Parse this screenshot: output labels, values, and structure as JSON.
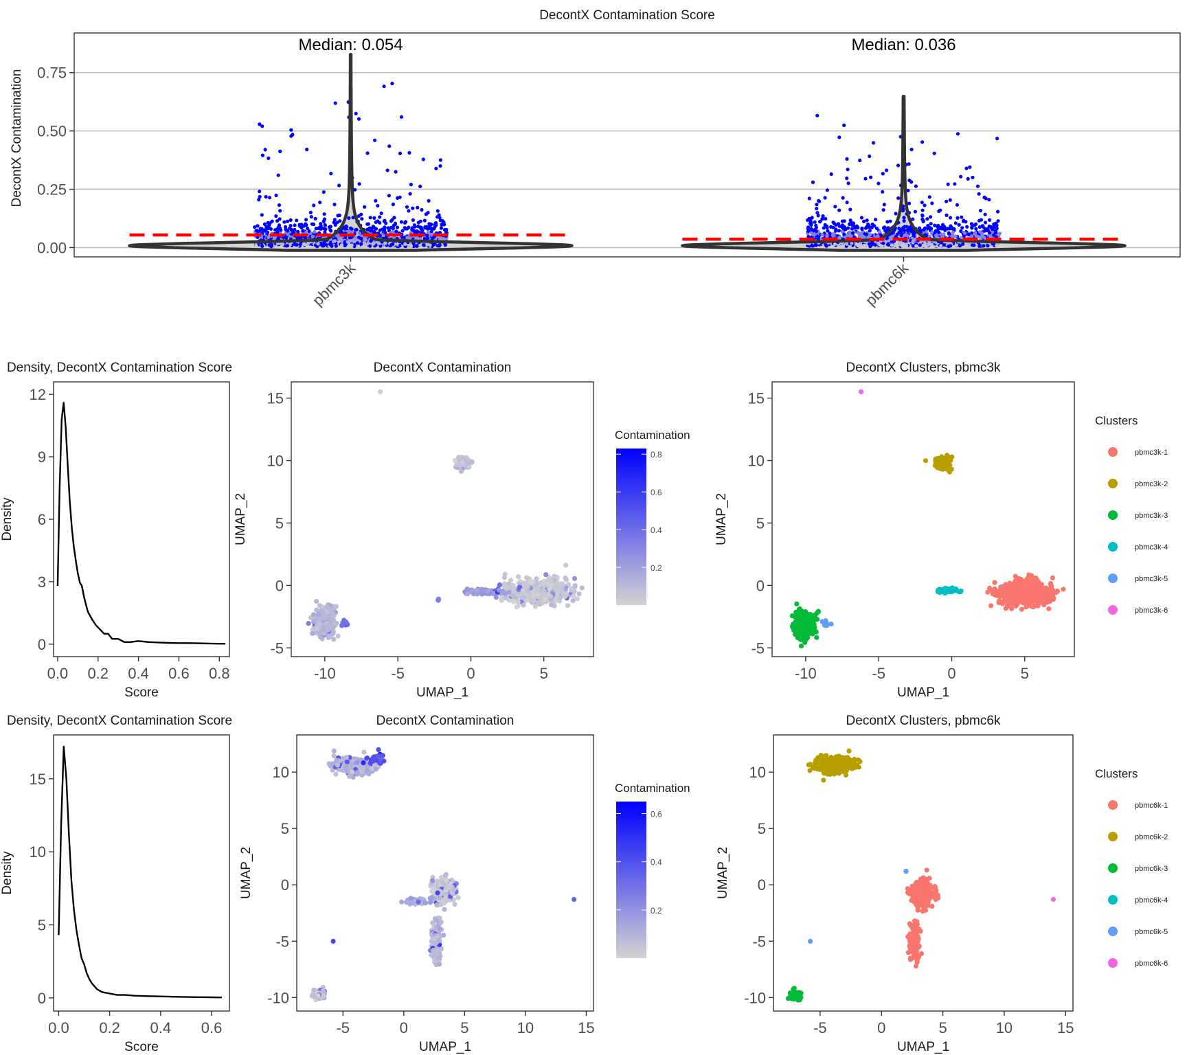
{
  "chart_data": [
    {
      "id": "violin",
      "type": "violin",
      "title": "DecontX Contamination Score",
      "ylabel": "DecontX Contamination",
      "xlabel": "",
      "categories": [
        "pbmc3k",
        "pbmc6k"
      ],
      "ylim": [
        -0.04,
        0.92
      ],
      "yticks": [
        0.0,
        0.25,
        0.5,
        0.75
      ],
      "ytick_labels": [
        "0.00",
        "0.25",
        "0.50",
        "0.75"
      ],
      "medians": [
        0.054,
        0.036
      ],
      "annotations": [
        "Median: 0.054",
        "Median: 0.036"
      ],
      "max_values": [
        0.83,
        0.65
      ],
      "point_color": "#0000ff",
      "fill_color": "#d3d3d3",
      "median_line_color": "#ff0000",
      "grid": true
    },
    {
      "id": "density_3k",
      "type": "line",
      "title": "Density, DecontX Contamination Score",
      "xlabel": "Score",
      "ylabel": "Density",
      "xlim": [
        -0.02,
        0.85
      ],
      "ylim": [
        -0.6,
        12.6
      ],
      "xticks": [
        0.0,
        0.2,
        0.4,
        0.6,
        0.8
      ],
      "xtick_labels": [
        "0.0",
        "0.2",
        "0.4",
        "0.6",
        "0.8"
      ],
      "yticks": [
        0,
        3,
        6,
        9,
        12
      ],
      "ytick_labels": [
        "0",
        "3",
        "6",
        "9",
        "12"
      ],
      "x": [
        0.0,
        0.01,
        0.02,
        0.03,
        0.04,
        0.05,
        0.06,
        0.07,
        0.08,
        0.09,
        0.1,
        0.11,
        0.12,
        0.13,
        0.14,
        0.15,
        0.17,
        0.19,
        0.21,
        0.23,
        0.25,
        0.27,
        0.3,
        0.33,
        0.36,
        0.4,
        0.45,
        0.5,
        0.55,
        0.6,
        0.65,
        0.7,
        0.75,
        0.8,
        0.83
      ],
      "y": [
        2.8,
        7.5,
        10.8,
        11.6,
        10.4,
        8.6,
        6.9,
        5.6,
        4.7,
        4.0,
        3.4,
        2.95,
        2.8,
        2.3,
        1.9,
        1.55,
        1.2,
        0.9,
        0.7,
        0.5,
        0.5,
        0.25,
        0.25,
        0.1,
        0.1,
        0.15,
        0.1,
        0.08,
        0.06,
        0.05,
        0.05,
        0.04,
        0.03,
        0.02,
        0.02
      ],
      "grid": false
    },
    {
      "id": "umap_contam_3k",
      "type": "scatter",
      "title": "DecontX Contamination",
      "xlabel": "UMAP_1",
      "ylabel": "UMAP_2",
      "xlim": [
        -12.3,
        8.4
      ],
      "ylim": [
        -5.7,
        16.3
      ],
      "xticks": [
        -10,
        -5,
        0,
        5
      ],
      "xtick_labels": [
        "-10",
        "-5",
        "0",
        "5"
      ],
      "yticks": [
        -5,
        0,
        5,
        10,
        15
      ],
      "ytick_labels": [
        "-5",
        "0",
        "5",
        "10",
        "15"
      ],
      "color_scale": {
        "title": "Contamination",
        "min": 0.0,
        "max": 0.83,
        "low": "#d3d3d3",
        "high": "#0000ff",
        "ticks": [
          0.2,
          0.4,
          0.6,
          0.8
        ],
        "tick_labels": [
          "0.2",
          "0.4",
          "0.6",
          "0.8"
        ]
      },
      "clusters": [
        {
          "center": [
            4.5,
            -0.5
          ],
          "spread": [
            1.9,
            0.9
          ],
          "n": 520,
          "level": 0.04
        },
        {
          "center": [
            -0.5,
            9.8
          ],
          "spread": [
            0.45,
            0.45
          ],
          "n": 90,
          "level": 0.08
        },
        {
          "center": [
            -10.0,
            -3.0
          ],
          "spread": [
            0.7,
            1.1
          ],
          "n": 260,
          "level": 0.1
        },
        {
          "center": [
            0.9,
            -0.5
          ],
          "spread": [
            1.1,
            0.2
          ],
          "n": 110,
          "level": 0.22
        },
        {
          "center": [
            -8.6,
            -3.0
          ],
          "spread": [
            0.25,
            0.25
          ],
          "n": 14,
          "level": 0.4
        },
        {
          "center": [
            -2.2,
            -1.1
          ],
          "spread": [
            0.1,
            0.1
          ],
          "n": 4,
          "level": 0.35
        },
        {
          "center": [
            -6.2,
            15.5
          ],
          "spread": [
            0.01,
            0.01
          ],
          "n": 1,
          "level": 0.05
        }
      ]
    },
    {
      "id": "umap_clusters_3k",
      "type": "scatter",
      "title": "DecontX Clusters, pbmc3k",
      "xlabel": "UMAP_1",
      "ylabel": "UMAP_2",
      "xlim": [
        -12.3,
        8.4
      ],
      "ylim": [
        -5.7,
        16.3
      ],
      "xticks": [
        -10,
        -5,
        0,
        5
      ],
      "xtick_labels": [
        "-10",
        "-5",
        "0",
        "5"
      ],
      "yticks": [
        -5,
        0,
        5,
        10,
        15
      ],
      "ytick_labels": [
        "-5",
        "0",
        "5",
        "10",
        "15"
      ],
      "legend": {
        "title": "Clusters",
        "position": "right",
        "entries": [
          "pbmc3k-1",
          "pbmc3k-2",
          "pbmc3k-3",
          "pbmc3k-4",
          "pbmc3k-5",
          "pbmc3k-6"
        ],
        "colors": [
          "#f8766d",
          "#b79f00",
          "#00ba38",
          "#00bfc4",
          "#619cff",
          "#f564e3"
        ]
      },
      "clusters": [
        {
          "label": "pbmc3k-1",
          "center": [
            5.0,
            -0.6
          ],
          "spread": [
            1.8,
            0.9
          ],
          "n": 520
        },
        {
          "label": "pbmc3k-2",
          "center": [
            -0.6,
            9.8
          ],
          "spread": [
            0.45,
            0.45
          ],
          "n": 90
        },
        {
          "label": "pbmc3k-3",
          "center": [
            -10.1,
            -3.2
          ],
          "spread": [
            0.7,
            1.0
          ],
          "n": 260
        },
        {
          "label": "pbmc3k-4",
          "center": [
            -0.3,
            -0.4
          ],
          "spread": [
            0.6,
            0.15
          ],
          "n": 70
        },
        {
          "label": "pbmc3k-5",
          "center": [
            -8.6,
            -3.0
          ],
          "spread": [
            0.25,
            0.25
          ],
          "n": 14
        },
        {
          "label": "pbmc3k-6",
          "center": [
            -6.2,
            15.5
          ],
          "spread": [
            0.01,
            0.01
          ],
          "n": 1
        }
      ]
    },
    {
      "id": "density_6k",
      "type": "line",
      "title": "Density, DecontX Contamination Score",
      "xlabel": "Score",
      "ylabel": "Density",
      "xlim": [
        -0.02,
        0.67
      ],
      "ylim": [
        -0.9,
        18.0
      ],
      "xticks": [
        0.0,
        0.2,
        0.4,
        0.6
      ],
      "xtick_labels": [
        "0.0",
        "0.2",
        "0.4",
        "0.6"
      ],
      "yticks": [
        0,
        5,
        10,
        15
      ],
      "ytick_labels": [
        "0",
        "5",
        "10",
        "15"
      ],
      "x": [
        0.0,
        0.01,
        0.02,
        0.03,
        0.04,
        0.05,
        0.06,
        0.07,
        0.08,
        0.09,
        0.1,
        0.11,
        0.12,
        0.13,
        0.15,
        0.17,
        0.2,
        0.23,
        0.26,
        0.3,
        0.35,
        0.4,
        0.45,
        0.5,
        0.55,
        0.6,
        0.64
      ],
      "y": [
        4.3,
        12.0,
        17.2,
        15.0,
        11.2,
        8.0,
        6.0,
        4.6,
        3.6,
        2.7,
        2.3,
        1.7,
        1.3,
        1.0,
        0.6,
        0.4,
        0.3,
        0.2,
        0.2,
        0.15,
        0.12,
        0.1,
        0.08,
        0.06,
        0.05,
        0.04,
        0.03
      ],
      "grid": false
    },
    {
      "id": "umap_contam_6k",
      "type": "scatter",
      "title": "DecontX Contamination",
      "xlabel": "UMAP_1",
      "ylabel": "UMAP_2",
      "xlim": [
        -8.8,
        15.6
      ],
      "ylim": [
        -11.2,
        13.3
      ],
      "xticks": [
        -5,
        0,
        5,
        10,
        15
      ],
      "xtick_labels": [
        "-5",
        "0",
        "5",
        "10",
        "15"
      ],
      "yticks": [
        -10,
        -5,
        0,
        5,
        10
      ],
      "ytick_labels": [
        "-10",
        "-5",
        "0",
        "5",
        "10"
      ],
      "color_scale": {
        "title": "Contamination",
        "min": 0.0,
        "max": 0.65,
        "low": "#d3d3d3",
        "high": "#0000ff",
        "ticks": [
          0.2,
          0.4,
          0.6
        ],
        "tick_labels": [
          "0.2",
          "0.4",
          "0.6"
        ]
      },
      "clusters": [
        {
          "center": [
            -4.2,
            10.5
          ],
          "spread": [
            1.4,
            0.7
          ],
          "n": 240,
          "level": 0.1
        },
        {
          "center": [
            -2.2,
            11.2
          ],
          "spread": [
            0.6,
            0.4
          ],
          "n": 40,
          "level": 0.4
        },
        {
          "center": [
            3.3,
            -0.5
          ],
          "spread": [
            0.8,
            1.0
          ],
          "n": 330,
          "level": 0.04
        },
        {
          "center": [
            2.7,
            -5.0
          ],
          "spread": [
            0.35,
            1.6
          ],
          "n": 140,
          "level": 0.08
        },
        {
          "center": [
            0.8,
            -1.5
          ],
          "spread": [
            0.9,
            0.3
          ],
          "n": 40,
          "level": 0.12
        },
        {
          "center": [
            -7.0,
            -9.8
          ],
          "spread": [
            0.35,
            0.3
          ],
          "n": 110,
          "level": 0.05
        },
        {
          "center": [
            -5.8,
            -5.0
          ],
          "spread": [
            0.01,
            0.01
          ],
          "n": 1,
          "level": 0.45
        },
        {
          "center": [
            14.0,
            -1.3
          ],
          "spread": [
            0.01,
            0.01
          ],
          "n": 1,
          "level": 0.05
        }
      ]
    },
    {
      "id": "umap_clusters_6k",
      "type": "scatter",
      "title": "DecontX Clusters, pbmc6k",
      "xlabel": "UMAP_1",
      "ylabel": "UMAP_2",
      "xlim": [
        -8.8,
        15.6
      ],
      "ylim": [
        -11.2,
        13.3
      ],
      "xticks": [
        -5,
        0,
        5,
        10,
        15
      ],
      "xtick_labels": [
        "-5",
        "0",
        "5",
        "10",
        "15"
      ],
      "yticks": [
        -10,
        -5,
        0,
        5,
        10
      ],
      "ytick_labels": [
        "-10",
        "-5",
        "0",
        "5",
        "10"
      ],
      "legend": {
        "title": "Clusters",
        "position": "right",
        "entries": [
          "pbmc6k-1",
          "pbmc6k-2",
          "pbmc6k-3",
          "pbmc6k-4",
          "pbmc6k-5",
          "pbmc6k-6"
        ],
        "colors": [
          "#f8766d",
          "#b79f00",
          "#00ba38",
          "#00bfc4",
          "#619cff",
          "#f564e3"
        ]
      },
      "clusters": [
        {
          "label": "pbmc6k-1",
          "center": [
            3.3,
            -0.8
          ],
          "spread": [
            0.8,
            1.0
          ],
          "n": 360
        },
        {
          "label": "pbmc6k-1",
          "center": [
            2.7,
            -5.0
          ],
          "spread": [
            0.35,
            1.6
          ],
          "n": 140
        },
        {
          "label": "pbmc6k-2",
          "center": [
            -3.8,
            10.6
          ],
          "spread": [
            1.5,
            0.7
          ],
          "n": 260
        },
        {
          "label": "pbmc6k-3",
          "center": [
            -7.0,
            -9.8
          ],
          "spread": [
            0.35,
            0.3
          ],
          "n": 110
        },
        {
          "label": "pbmc6k-4",
          "center": [
            2.0,
            1.2
          ],
          "spread": [
            0.01,
            0.01
          ],
          "n": 1
        },
        {
          "label": "pbmc6k-5",
          "center": [
            2.0,
            1.2
          ],
          "spread": [
            0.01,
            0.01
          ],
          "n": 1
        },
        {
          "label": "pbmc6k-5",
          "center": [
            -5.8,
            -5.0
          ],
          "spread": [
            0.01,
            0.01
          ],
          "n": 1
        },
        {
          "label": "pbmc6k-6",
          "center": [
            14.0,
            -1.3
          ],
          "spread": [
            0.01,
            0.01
          ],
          "n": 1
        }
      ]
    }
  ]
}
